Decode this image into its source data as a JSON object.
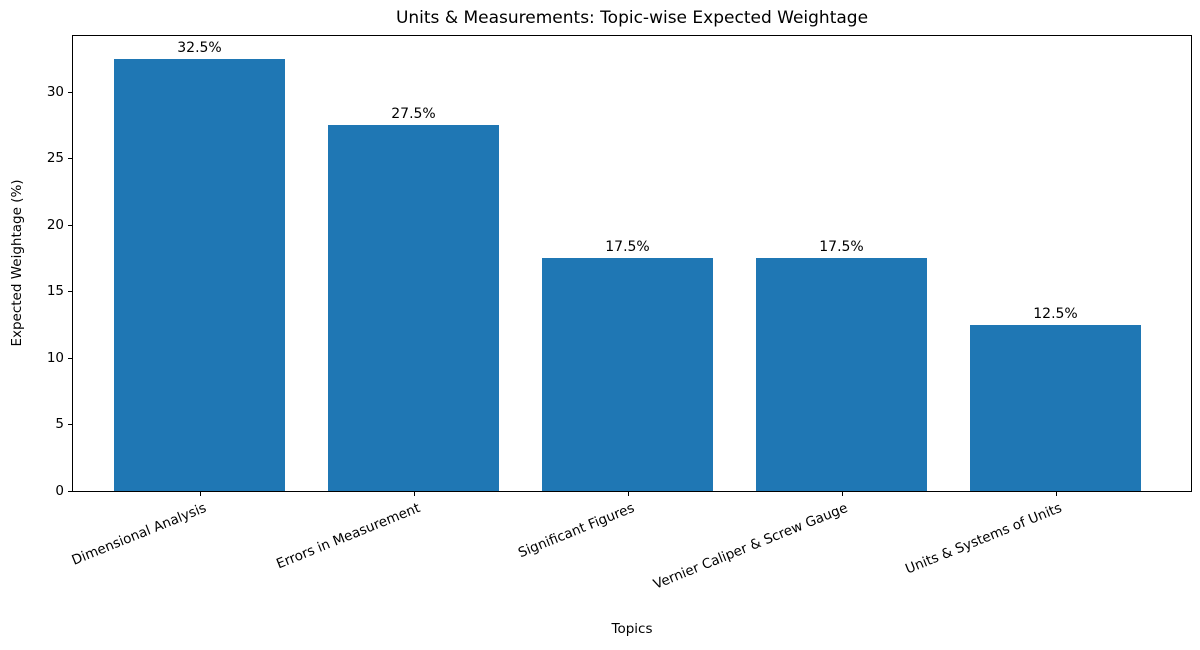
{
  "chart_data": {
    "type": "bar",
    "title": "Units & Measurements: Topic-wise Expected Weightage",
    "xlabel": "Topics",
    "ylabel": "Expected Weightage (%)",
    "categories": [
      "Dimensional Analysis",
      "Errors in Measurement",
      "Significant Figures",
      "Vernier Caliper & Screw Gauge",
      "Units & Systems of Units"
    ],
    "values": [
      32.5,
      27.5,
      17.5,
      17.5,
      12.5
    ],
    "bar_labels": [
      "32.5%",
      "27.5%",
      "17.5%",
      "17.5%",
      "12.5%"
    ],
    "yticks": [
      0,
      5,
      10,
      15,
      20,
      25,
      30
    ],
    "ylim": [
      0,
      34.35
    ],
    "bar_color": "#1f77b4",
    "grid": false,
    "legend_position": "none",
    "x_tick_rotation_deg": 22
  }
}
